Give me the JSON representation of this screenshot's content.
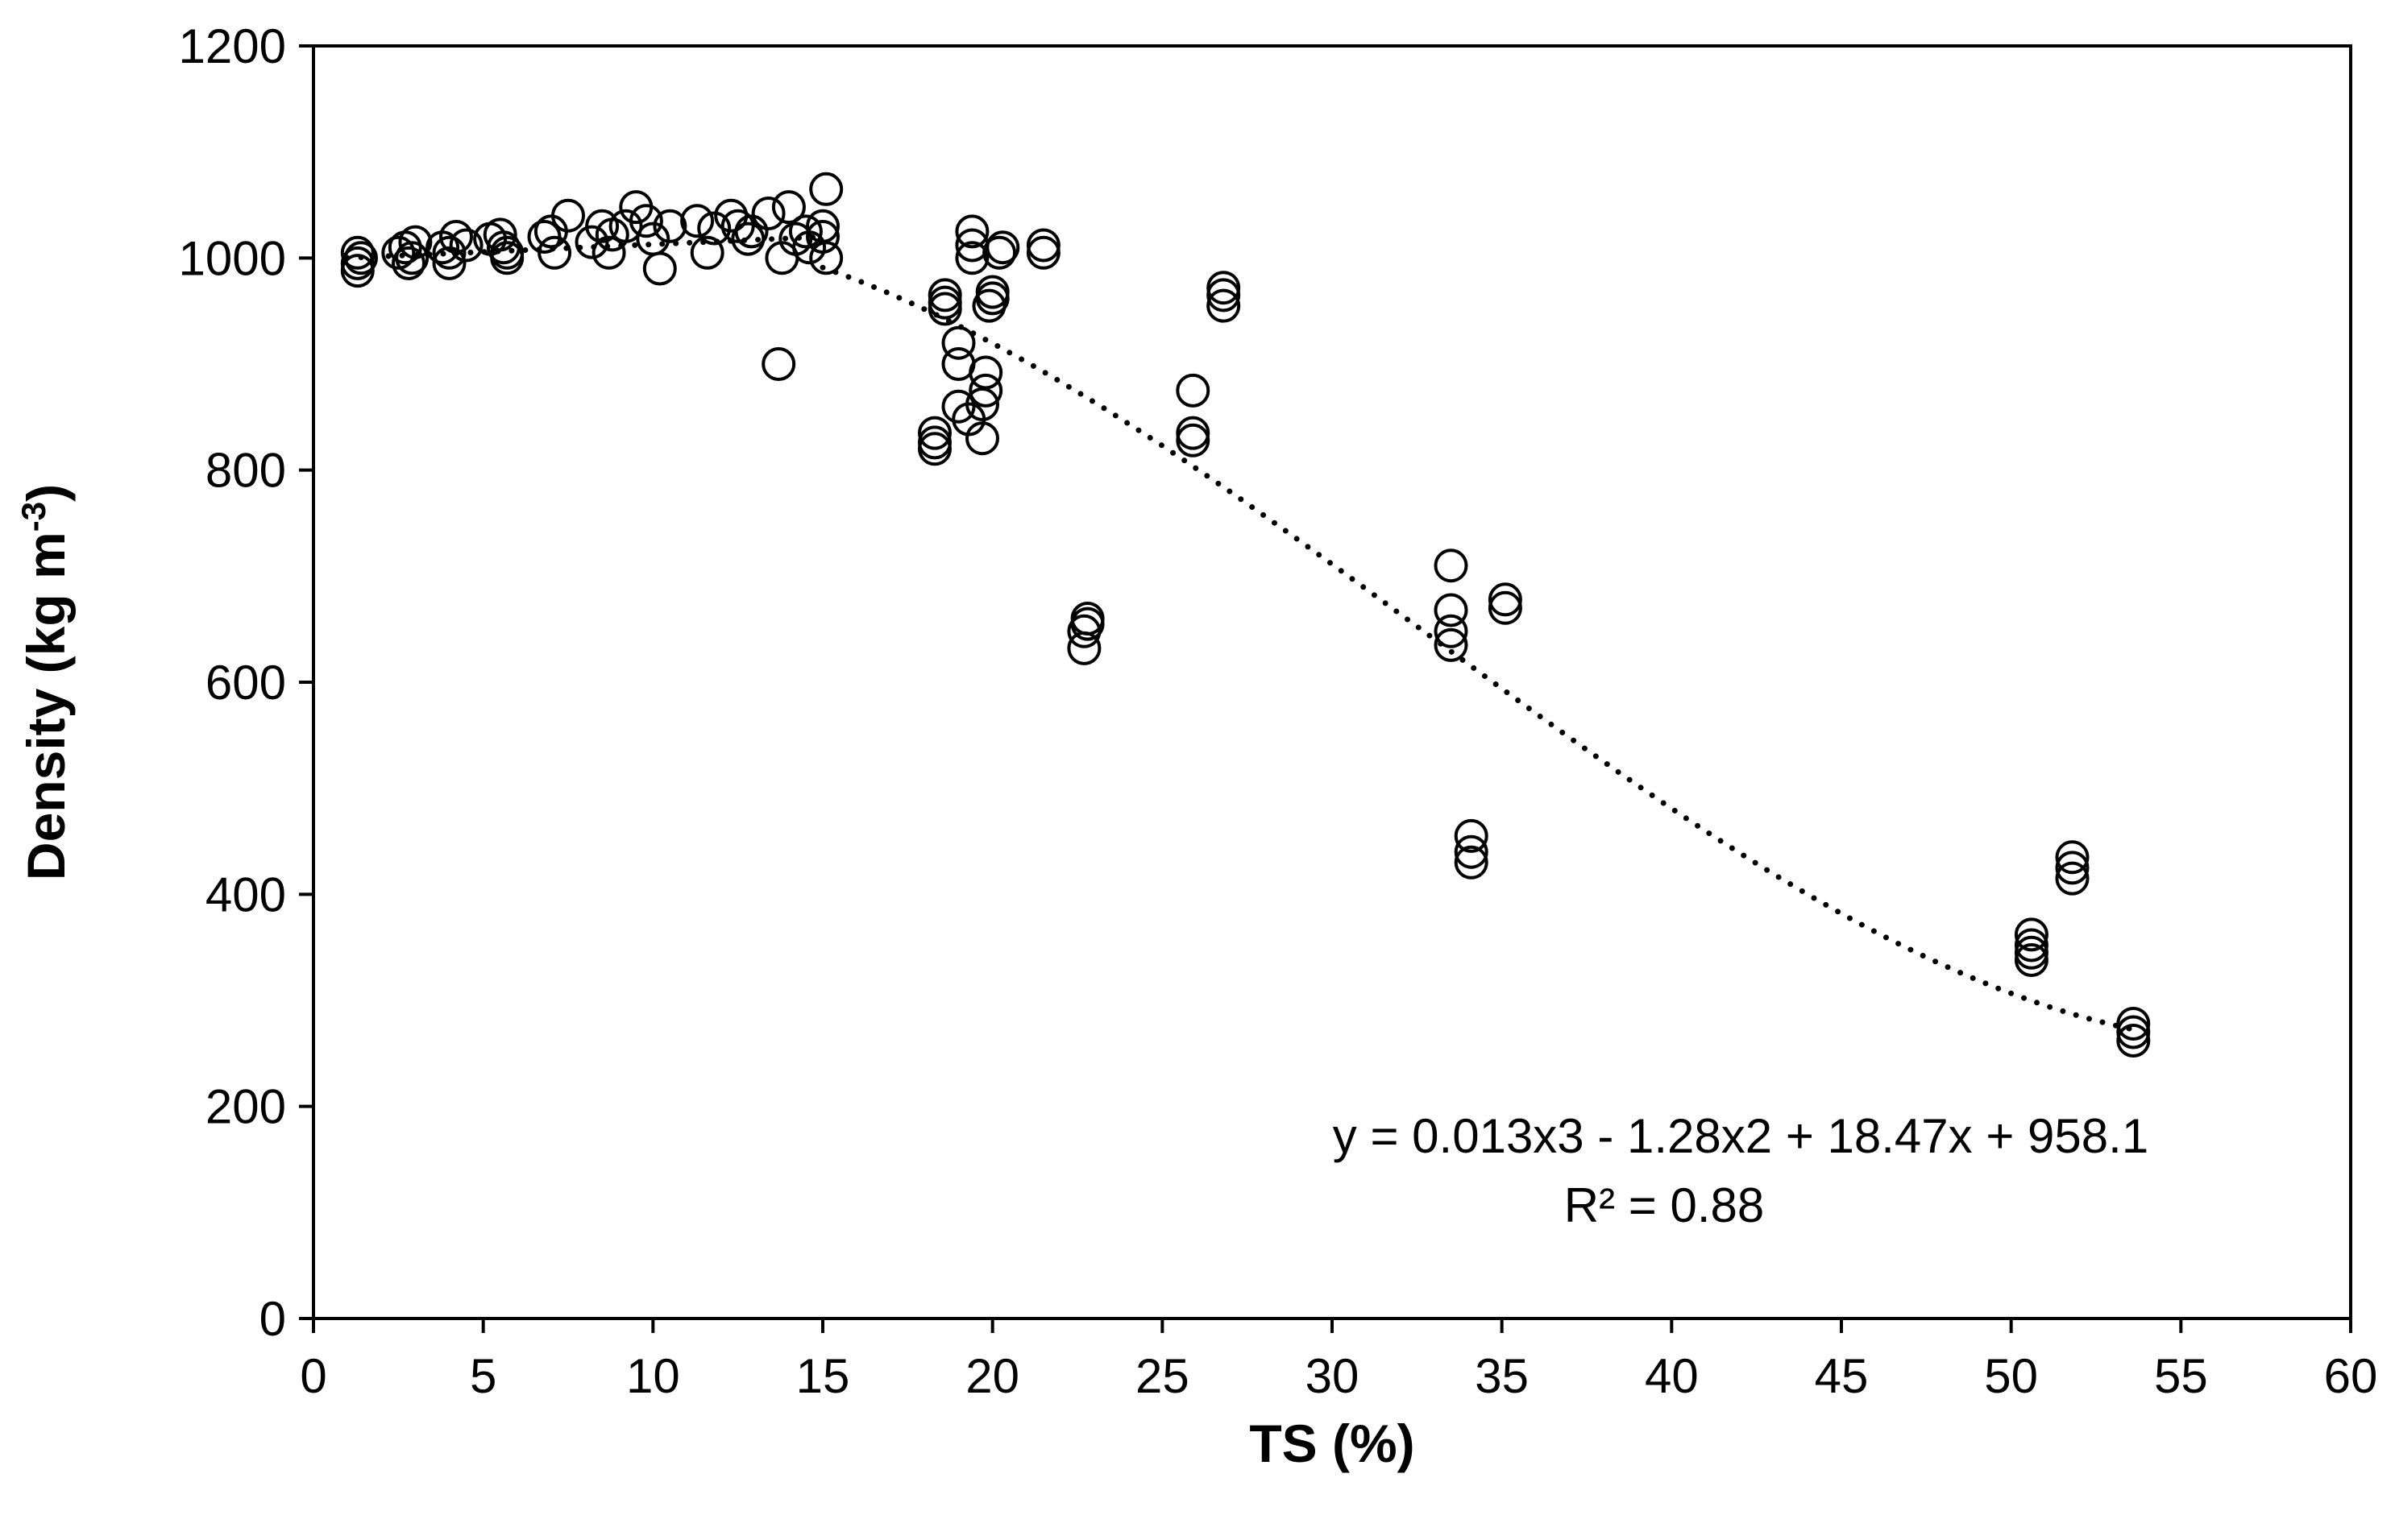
{
  "chart_data": {
    "type": "scatter",
    "title": "",
    "xlabel": "TS (%)",
    "ylabel_main": "Density (kg m",
    "ylabel_sup": "-3",
    "ylabel_close": ")",
    "xlim": [
      0,
      60
    ],
    "ylim": [
      0,
      1200
    ],
    "grid": false,
    "xticks": [
      0,
      5,
      10,
      15,
      20,
      25,
      30,
      35,
      40,
      45,
      50,
      55,
      60
    ],
    "yticks": [
      0,
      200,
      400,
      600,
      800,
      1000,
      1200
    ],
    "xtick_labels": [
      "0",
      "5",
      "10",
      "15",
      "20",
      "25",
      "30",
      "35",
      "40",
      "45",
      "50",
      "55",
      "60"
    ],
    "ytick_labels": [
      "0",
      "200",
      "400",
      "600",
      "800",
      "1000",
      "1200"
    ],
    "marker": "open-circle",
    "trendline": {
      "type": "polynomial-3",
      "coefficients": [
        0.013,
        -1.28,
        18.47,
        958.1
      ],
      "x_range": [
        15,
        53.5
      ],
      "style": "dotted"
    },
    "annotations": {
      "equation": "y = 0.013x3 - 1.28x2 + 18.47x + 958.1",
      "r_squared": "R² = 0.88"
    },
    "series": [
      {
        "name": "Density",
        "points": [
          [
            1.3,
            1005
          ],
          [
            1.3,
            995
          ],
          [
            1.3,
            988
          ],
          [
            1.4,
            1000
          ],
          [
            2.5,
            1005
          ],
          [
            2.7,
            1010
          ],
          [
            2.8,
            995
          ],
          [
            2.9,
            1000
          ],
          [
            3.0,
            1015
          ],
          [
            3.8,
            1010
          ],
          [
            4.0,
            1005
          ],
          [
            4.0,
            995
          ],
          [
            4.2,
            1020
          ],
          [
            4.5,
            1012
          ],
          [
            5.2,
            1018
          ],
          [
            5.5,
            1022
          ],
          [
            5.6,
            1010
          ],
          [
            5.7,
            1005
          ],
          [
            5.7,
            1000
          ],
          [
            6.8,
            1020
          ],
          [
            7.0,
            1025
          ],
          [
            7.1,
            1005
          ],
          [
            7.5,
            1040
          ],
          [
            8.2,
            1015
          ],
          [
            8.5,
            1030
          ],
          [
            8.7,
            1005
          ],
          [
            8.8,
            1022
          ],
          [
            9.2,
            1030
          ],
          [
            9.5,
            1048
          ],
          [
            9.8,
            1035
          ],
          [
            10.0,
            1018
          ],
          [
            10.2,
            990
          ],
          [
            10.5,
            1030
          ],
          [
            11.3,
            1035
          ],
          [
            11.6,
            1005
          ],
          [
            11.8,
            1028
          ],
          [
            12.3,
            1040
          ],
          [
            12.5,
            1030
          ],
          [
            12.8,
            1018
          ],
          [
            12.9,
            1025
          ],
          [
            13.4,
            1042
          ],
          [
            13.7,
            900
          ],
          [
            13.8,
            1000
          ],
          [
            14.0,
            1048
          ],
          [
            14.2,
            1018
          ],
          [
            14.5,
            1025
          ],
          [
            14.6,
            1010
          ],
          [
            15.0,
            1030
          ],
          [
            15.0,
            1020
          ],
          [
            15.1,
            1000
          ],
          [
            15.1,
            1065
          ],
          [
            18.3,
            820
          ],
          [
            18.3,
            826
          ],
          [
            18.3,
            835
          ],
          [
            18.6,
            952
          ],
          [
            18.6,
            958
          ],
          [
            18.6,
            965
          ],
          [
            19.0,
            920
          ],
          [
            19.0,
            900
          ],
          [
            19.0,
            860
          ],
          [
            19.3,
            848
          ],
          [
            19.4,
            1025
          ],
          [
            19.4,
            1012
          ],
          [
            19.4,
            1000
          ],
          [
            19.7,
            830
          ],
          [
            19.7,
            862
          ],
          [
            19.8,
            892
          ],
          [
            19.8,
            875
          ],
          [
            19.9,
            955
          ],
          [
            20.0,
            962
          ],
          [
            20.0,
            968
          ],
          [
            20.2,
            1005
          ],
          [
            20.3,
            1010
          ],
          [
            21.5,
            1005
          ],
          [
            21.5,
            1012
          ],
          [
            22.7,
            632
          ],
          [
            22.7,
            648
          ],
          [
            22.8,
            655
          ],
          [
            22.8,
            660
          ],
          [
            25.9,
            875
          ],
          [
            25.9,
            835
          ],
          [
            25.9,
            828
          ],
          [
            26.8,
            955
          ],
          [
            26.8,
            965
          ],
          [
            26.8,
            972
          ],
          [
            33.5,
            710
          ],
          [
            33.5,
            668
          ],
          [
            33.5,
            648
          ],
          [
            33.5,
            635
          ],
          [
            34.1,
            455
          ],
          [
            34.1,
            440
          ],
          [
            34.1,
            430
          ],
          [
            35.1,
            670
          ],
          [
            35.1,
            678
          ],
          [
            50.6,
            362
          ],
          [
            50.6,
            352
          ],
          [
            50.6,
            345
          ],
          [
            50.6,
            338
          ],
          [
            51.8,
            435
          ],
          [
            51.8,
            425
          ],
          [
            51.8,
            415
          ],
          [
            53.6,
            262
          ],
          [
            53.6,
            270
          ],
          [
            53.6,
            278
          ]
        ]
      }
    ]
  }
}
